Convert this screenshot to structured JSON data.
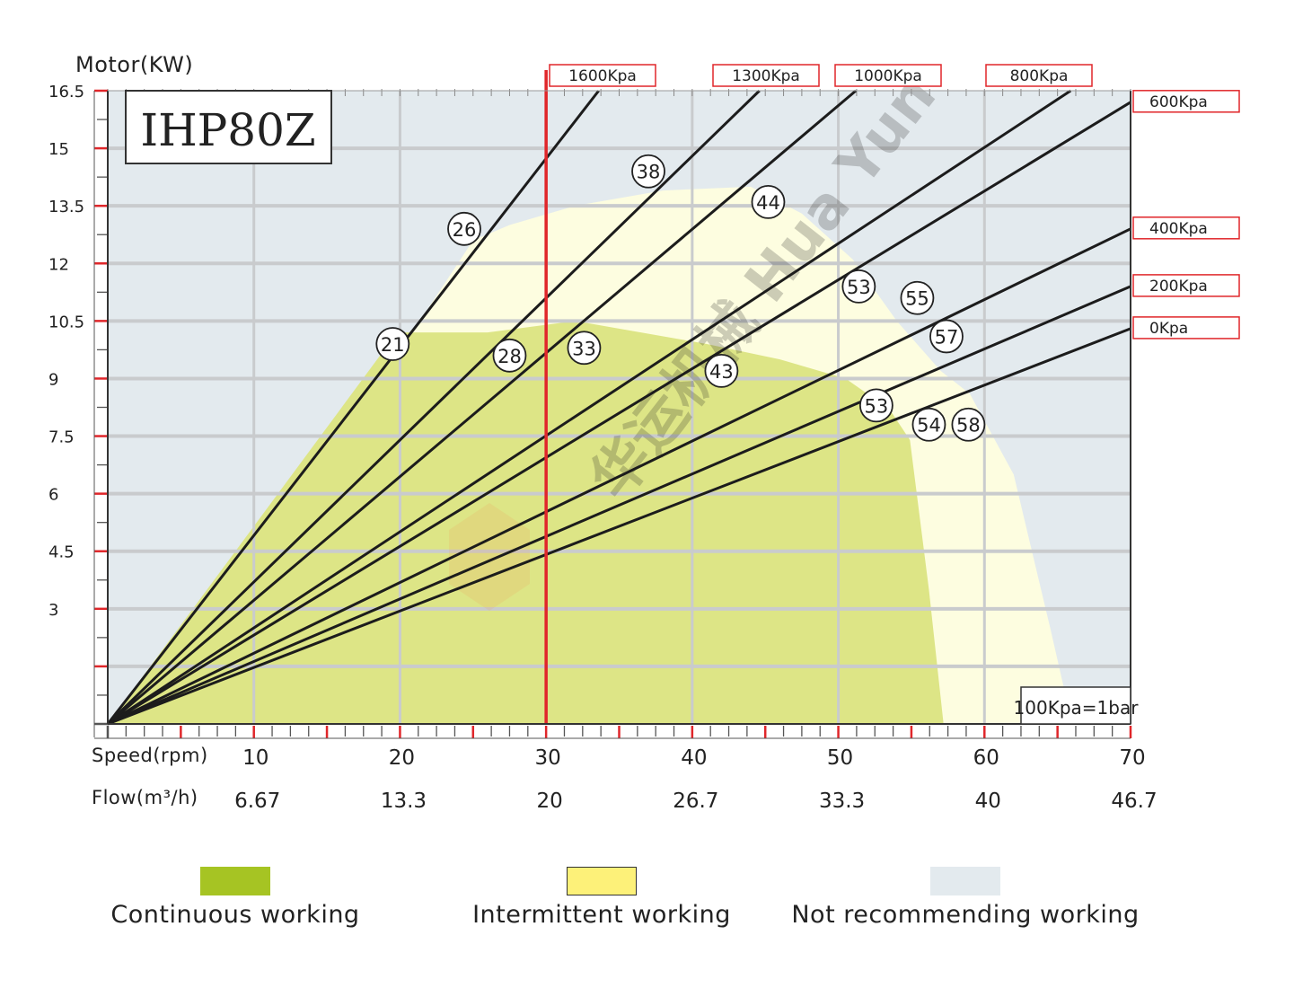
{
  "chart_data": {
    "type": "line",
    "model": "IHP80Z",
    "ylabel": "Motor(KW)",
    "xlabel": "Speed(rpm)",
    "x2label": "Flow(m³/h)",
    "note": "100Kpa=1bar",
    "ylim": [
      0,
      16.5
    ],
    "xlim": [
      0,
      70
    ],
    "y_ticks": [
      "16.5",
      "15",
      "13.5",
      "12",
      "10.5",
      "9",
      "7.5",
      "6",
      "4.5",
      "3"
    ],
    "y_tick_values": [
      16.5,
      15,
      13.5,
      12,
      10.5,
      9,
      7.5,
      6,
      4.5,
      3
    ],
    "x_ticks": [
      "10",
      "20",
      "30",
      "40",
      "50",
      "60",
      "70"
    ],
    "x_tick_values": [
      10,
      20,
      30,
      40,
      50,
      60,
      70
    ],
    "flow_ticks": [
      "6.67",
      "13.3",
      "20",
      "26.7",
      "33.3",
      "40",
      "46.7"
    ],
    "reference_speed": 30,
    "series": [
      {
        "name": "1600Kpa",
        "points": [
          [
            0,
            0
          ],
          [
            33.6,
            16.5
          ]
        ]
      },
      {
        "name": "1300Kpa",
        "points": [
          [
            0,
            0
          ],
          [
            44.6,
            16.5
          ]
        ]
      },
      {
        "name": "1000Kpa",
        "points": [
          [
            0,
            0
          ],
          [
            51.2,
            16.5
          ]
        ]
      },
      {
        "name": "800Kpa",
        "points": [
          [
            0,
            0
          ],
          [
            65.9,
            16.5
          ]
        ]
      },
      {
        "name": "600Kpa",
        "points": [
          [
            0,
            0
          ],
          [
            70,
            16.2
          ]
        ]
      },
      {
        "name": "400Kpa",
        "points": [
          [
            0,
            0
          ],
          [
            70,
            12.9
          ]
        ]
      },
      {
        "name": "200Kpa",
        "points": [
          [
            0,
            0
          ],
          [
            70,
            11.4
          ]
        ]
      },
      {
        "name": "0Kpa",
        "points": [
          [
            0,
            0
          ],
          [
            70,
            10.3
          ]
        ]
      }
    ],
    "regions": [
      {
        "name": "Not recommending working",
        "color": "#e3eaee",
        "points": [
          [
            0,
            0
          ],
          [
            0,
            16.5
          ],
          [
            70,
            16.5
          ],
          [
            70,
            0
          ]
        ]
      },
      {
        "name": "Intermittent working",
        "color": "#fdfde0",
        "points": [
          [
            0,
            0
          ],
          [
            19.8,
            9.6
          ],
          [
            25,
            12.6
          ],
          [
            27.5,
            13.0
          ],
          [
            32,
            13.5
          ],
          [
            38,
            13.9
          ],
          [
            44,
            14.0
          ],
          [
            47.5,
            13.3
          ],
          [
            51,
            12.1
          ],
          [
            54,
            10.5
          ],
          [
            57,
            9.2
          ],
          [
            59,
            8.6
          ],
          [
            62,
            6.5
          ],
          [
            64.5,
            2.5
          ],
          [
            66,
            0
          ]
        ]
      },
      {
        "name": "Continuous working",
        "color": "#dde586",
        "points": [
          [
            0,
            0
          ],
          [
            19.8,
            10.2
          ],
          [
            26,
            10.2
          ],
          [
            32,
            10.5
          ],
          [
            41,
            9.9
          ],
          [
            46,
            9.5
          ],
          [
            50.5,
            9.0
          ],
          [
            53.5,
            8.2
          ],
          [
            54.9,
            7.4
          ],
          [
            56.2,
            3.5
          ],
          [
            57.2,
            0
          ]
        ]
      }
    ],
    "efficiency_labels": [
      {
        "text": "21",
        "x": 19.5,
        "y": 9.9
      },
      {
        "text": "26",
        "x": 24.4,
        "y": 12.9
      },
      {
        "text": "28",
        "x": 27.5,
        "y": 9.6
      },
      {
        "text": "33",
        "x": 32.6,
        "y": 9.8
      },
      {
        "text": "38",
        "x": 37.0,
        "y": 14.4
      },
      {
        "text": "44",
        "x": 45.2,
        "y": 13.6
      },
      {
        "text": "43",
        "x": 42.0,
        "y": 9.2
      },
      {
        "text": "53",
        "x": 51.4,
        "y": 11.4
      },
      {
        "text": "55",
        "x": 55.4,
        "y": 11.1
      },
      {
        "text": "57",
        "x": 57.4,
        "y": 10.1
      },
      {
        "text": "53",
        "x": 52.6,
        "y": 8.3
      },
      {
        "text": "54",
        "x": 56.2,
        "y": 7.8
      },
      {
        "text": "58",
        "x": 58.9,
        "y": 7.8
      }
    ],
    "colors": {
      "continuous": "#a6c423",
      "intermittent": "#fdf179",
      "not_recommended": "#e3eaee",
      "accent": "#e0262a"
    }
  },
  "legend": [
    {
      "label": "Continuous working",
      "color": "#a6c423",
      "border": "#a6c423"
    },
    {
      "label": "Intermittent working",
      "color": "#fdf179",
      "border": "#333333"
    },
    {
      "label": "Not recommending working",
      "color": "#e3eaee",
      "border": "#e3eaee"
    }
  ],
  "watermark": "华运机械 Hua Yun"
}
